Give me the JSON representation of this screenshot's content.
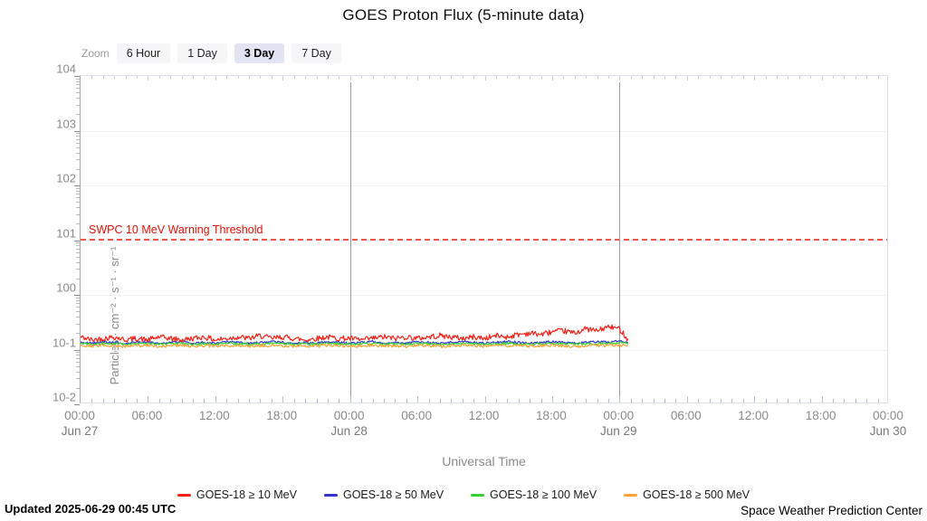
{
  "title": "GOES Proton Flux (5-minute data)",
  "zoom_controls": {
    "label": "Zoom",
    "options": [
      {
        "label": "6 Hour",
        "selected": false
      },
      {
        "label": "1 Day",
        "selected": false
      },
      {
        "label": "3 Day",
        "selected": true
      },
      {
        "label": "7 Day",
        "selected": false
      }
    ]
  },
  "y_axis": {
    "title": "Particles · cm⁻² · s⁻¹ · sr⁻¹",
    "tick_labels": [
      "104",
      "103",
      "102",
      "101",
      "100",
      "10-1",
      "10-2"
    ]
  },
  "x_axis": {
    "title": "Universal Time",
    "ticks": [
      {
        "time": "00:00",
        "date": "Jun 27"
      },
      {
        "time": "06:00",
        "date": ""
      },
      {
        "time": "12:00",
        "date": ""
      },
      {
        "time": "18:00",
        "date": ""
      },
      {
        "time": "00:00",
        "date": "Jun 28"
      },
      {
        "time": "06:00",
        "date": ""
      },
      {
        "time": "12:00",
        "date": ""
      },
      {
        "time": "18:00",
        "date": ""
      },
      {
        "time": "00:00",
        "date": "Jun 29"
      },
      {
        "time": "06:00",
        "date": ""
      },
      {
        "time": "12:00",
        "date": ""
      },
      {
        "time": "18:00",
        "date": ""
      },
      {
        "time": "00:00",
        "date": "Jun 30"
      }
    ]
  },
  "threshold": {
    "label": "SWPC 10 MeV Warning Threshold",
    "value": 10,
    "line_color": "#f5564a",
    "label_color": "#e01206"
  },
  "legend": [
    {
      "label": "GOES-18 ≥ 10 MeV",
      "color": "#ee2218"
    },
    {
      "label": "GOES-18 ≥ 50 MeV",
      "color": "#3434cb"
    },
    {
      "label": "GOES-18 ≥ 100 MeV",
      "color": "#33d133"
    },
    {
      "label": "GOES-18 ≥ 500 MeV",
      "color": "#ffa233"
    }
  ],
  "footer": {
    "updated": "Updated 2025-06-29 00:45 UTC",
    "credit": "Space Weather Prediction Center"
  },
  "chart_data": {
    "type": "line",
    "title": "GOES Proton Flux (5-minute data)",
    "xlabel": "Universal Time",
    "ylabel": "Particles · cm⁻² · s⁻¹ · sr⁻¹",
    "y_scale": "log10",
    "ylim": [
      0.01,
      10000
    ],
    "x_unit": "hours since 2025-06-27 00:00 UTC",
    "x_range_hours": [
      0,
      72
    ],
    "data_end_hour": 48.75,
    "day_gridlines_hours": [
      24,
      48
    ],
    "threshold_value": 10,
    "grid": "decade horizontal, light",
    "legend_position": "bottom center",
    "noise": {
      "seed": 42
    },
    "series": [
      {
        "name": "GOES-18 ≥ 10 MeV",
        "color": "#ee2218",
        "noise_log": 0.05,
        "hourly_values": [
          0.17,
          0.15,
          0.16,
          0.17,
          0.15,
          0.16,
          0.15,
          0.17,
          0.16,
          0.15,
          0.16,
          0.17,
          0.15,
          0.16,
          0.17,
          0.16,
          0.18,
          0.16,
          0.17,
          0.16,
          0.15,
          0.16,
          0.17,
          0.16,
          0.16,
          0.15,
          0.16,
          0.17,
          0.16,
          0.17,
          0.16,
          0.17,
          0.18,
          0.17,
          0.16,
          0.17,
          0.16,
          0.18,
          0.17,
          0.19,
          0.2,
          0.19,
          0.21,
          0.22,
          0.2,
          0.24,
          0.22,
          0.26,
          0.24,
          0.12
        ]
      },
      {
        "name": "GOES-18 ≥ 50 MeV",
        "color": "#3434cb",
        "noise_log": 0.02,
        "hourly_values": [
          0.135,
          0.13,
          0.14,
          0.135,
          0.13,
          0.135,
          0.14,
          0.13,
          0.135,
          0.14,
          0.13,
          0.135,
          0.13,
          0.14,
          0.135,
          0.13,
          0.135,
          0.14,
          0.135,
          0.13,
          0.135,
          0.13,
          0.14,
          0.135,
          0.13,
          0.135,
          0.14,
          0.13,
          0.135,
          0.13,
          0.14,
          0.135,
          0.13,
          0.135,
          0.14,
          0.135,
          0.13,
          0.135,
          0.14,
          0.135,
          0.13,
          0.135,
          0.14,
          0.135,
          0.13,
          0.135,
          0.14,
          0.135,
          0.15,
          0.13
        ]
      },
      {
        "name": "GOES-18 ≥ 100 MeV",
        "color": "#33d133",
        "noise_log": 0.02,
        "hourly_values": [
          0.128,
          0.125,
          0.13,
          0.128,
          0.125,
          0.128,
          0.13,
          0.125,
          0.128,
          0.13,
          0.125,
          0.128,
          0.125,
          0.13,
          0.128,
          0.125,
          0.128,
          0.13,
          0.128,
          0.125,
          0.128,
          0.125,
          0.13,
          0.128,
          0.125,
          0.128,
          0.13,
          0.125,
          0.128,
          0.125,
          0.13,
          0.128,
          0.125,
          0.128,
          0.13,
          0.128,
          0.125,
          0.128,
          0.13,
          0.128,
          0.125,
          0.128,
          0.13,
          0.128,
          0.125,
          0.128,
          0.13,
          0.128,
          0.135,
          0.125
        ]
      },
      {
        "name": "GOES-18 ≥ 500 MeV",
        "color": "#ffa233",
        "noise_log": 0.028,
        "hourly_values": [
          0.118,
          0.115,
          0.12,
          0.118,
          0.115,
          0.118,
          0.12,
          0.115,
          0.118,
          0.12,
          0.115,
          0.118,
          0.115,
          0.12,
          0.118,
          0.115,
          0.118,
          0.12,
          0.118,
          0.115,
          0.118,
          0.115,
          0.12,
          0.118,
          0.115,
          0.118,
          0.12,
          0.115,
          0.118,
          0.115,
          0.12,
          0.118,
          0.115,
          0.118,
          0.12,
          0.118,
          0.115,
          0.118,
          0.12,
          0.118,
          0.115,
          0.118,
          0.12,
          0.118,
          0.115,
          0.118,
          0.12,
          0.118,
          0.122,
          0.112
        ]
      }
    ],
    "render_order": [
      1,
      2,
      3,
      0
    ]
  }
}
